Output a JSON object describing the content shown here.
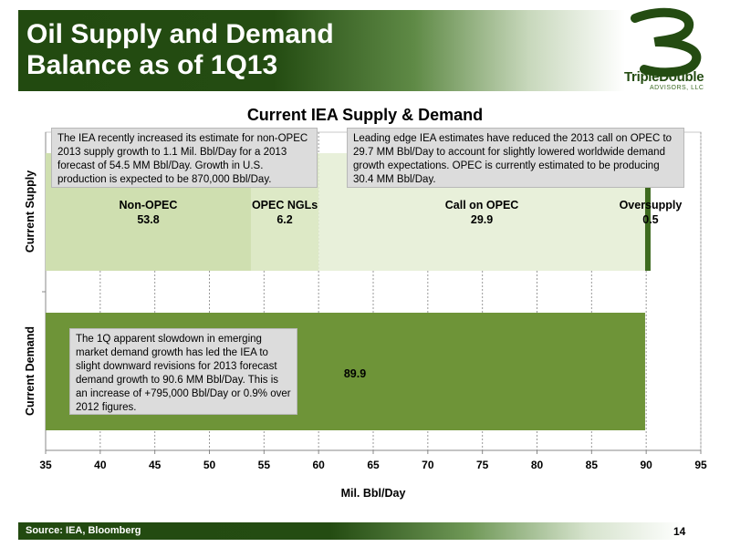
{
  "header": {
    "title_line1": "Oil Supply and Demand",
    "title_line2": "Balance as of 1Q13",
    "logo_name": "TripleDouble",
    "logo_sub": "ADVISORS, LLC"
  },
  "callouts": {
    "supply_left": "The IEA recently increased its estimate for non-OPEC 2013 supply growth to 1.1 Mil. Bbl/Day for a 2013 forecast of 54.5 MM Bbl/Day.  Growth in U.S. production is expected to be 870,000 Bbl/Day.",
    "supply_right": "Leading edge IEA estimates have reduced the 2013 call on OPEC to 29.7 MM Bbl/Day to account for slightly lowered worldwide demand growth expectations.  OPEC is currently estimated to be producing 30.4 MM Bbl/Day.",
    "demand": "The 1Q apparent slowdown in emerging market demand growth has led the IEA to slight downward revisions for 2013 forecast demand growth to 90.6 MM Bbl/Day.  This is an increase of +795,000 Bbl/Day or 0.9% over 2012 figures."
  },
  "footer": {
    "source": "Source: IEA, Bloomberg",
    "page": "14"
  },
  "colors": {
    "brand_dark": "#244c12",
    "non_opec": "#cfdfb0",
    "opec_ngl": "#dde9c6",
    "call_on_opec": "#e8f0da",
    "oversupply": "#3d6a1e",
    "demand": "#6e9438"
  },
  "chart_data": {
    "type": "bar",
    "orientation": "horizontal",
    "stacked": true,
    "title": "Current IEA Supply & Demand",
    "xlabel": "Mil. Bbl/Day",
    "xlim": [
      35,
      95
    ],
    "xticks": [
      35,
      40,
      45,
      50,
      55,
      60,
      65,
      70,
      75,
      80,
      85,
      90,
      95
    ],
    "grid": true,
    "categories": [
      "Current Supply",
      "Current Demand"
    ],
    "series": [
      {
        "name": "Non-OPEC",
        "category": "Current Supply",
        "value": 53.8,
        "label": "53.8"
      },
      {
        "name": "OPEC NGLs",
        "category": "Current Supply",
        "value": 6.2,
        "label": "6.2"
      },
      {
        "name": "Call on OPEC",
        "category": "Current Supply",
        "value": 29.9,
        "label": "29.9"
      },
      {
        "name": "Oversupply",
        "category": "Current Supply",
        "value": 0.5,
        "label": "0.5"
      },
      {
        "name": "",
        "category": "Current Demand",
        "value": 89.9,
        "label": "89.9"
      }
    ]
  }
}
